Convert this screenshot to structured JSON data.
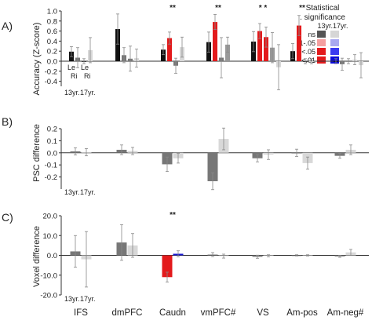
{
  "figure": {
    "region_labels": [
      "IFS",
      "dmPFC",
      "Caudn",
      "vmPFC#",
      "VS",
      "Am-pos",
      "Am-neg#"
    ],
    "age_note": [
      "13yr.",
      "17yr."
    ],
    "lr_note": [
      "Le",
      "Ri"
    ]
  },
  "legend": {
    "title": "Statistical significance",
    "title_line1": "Statistical",
    "title_line2": ". significance",
    "age_header": "13yr.17yr.",
    "rows": [
      {
        "label": "ns",
        "c13": "#555555",
        "c17": "#d6d6d6"
      },
      {
        "label": ".1-.05",
        "c13": "#f4a0a0",
        "c17": "#a8a8f0"
      },
      {
        "label": "<.05",
        "c13": "#e31a1c",
        "c17": "#3a3af0"
      },
      {
        "label": "<.01",
        "c13": "#e31a1c",
        "c17": "#0a0ad8"
      }
    ]
  },
  "colors": {
    "ns13_dark": "#111111",
    "ns13_mid": "#777777",
    "ns17_light": "#d8d8d8",
    "sig13": "#e31a1c",
    "sig17": "#1515d0"
  },
  "chart_data": [
    {
      "type": "bar",
      "panel": "A)",
      "ylabel": "Accuracy (Z-score)",
      "ylim": [
        -0.5,
        1.0
      ],
      "yticks": [
        "1.0",
        "0.8",
        "0.6",
        "0.4",
        "0.2",
        "0.0",
        "-0.2",
        "-0.4"
      ],
      "categories": [
        "IFS",
        "dmPFC",
        "Caudn",
        "vmPFC#",
        "VS",
        "Am-pos",
        "Am-neg#"
      ],
      "series": [
        {
          "values": [
            0.19,
            0.64,
            0.23,
            0.38,
            0.39,
            0.2,
            0.0
          ],
          "err": [
            0.1,
            0.3,
            0.1,
            0.2,
            0.2,
            0.15,
            0.05
          ],
          "colors": [
            "#111111",
            "#111111",
            "#111111",
            "#111111",
            "#111111",
            "#111111",
            "#111111"
          ]
        },
        {
          "values": [
            0.07,
            0.12,
            0.46,
            0.78,
            0.6,
            0.71,
            -0.06
          ],
          "err": [
            0.2,
            0.15,
            0.12,
            0.15,
            0.15,
            0.2,
            0.12
          ],
          "colors": [
            "#777777",
            "#777777",
            "#e31a1c",
            "#e31a1c",
            "#e31a1c",
            "#e31a1c",
            "#777777"
          ]
        },
        {
          "values": [
            0.0,
            0.05,
            -0.09,
            0.07,
            0.48,
            0.0,
            0.0
          ],
          "err": [
            0.05,
            0.25,
            0.15,
            0.4,
            0.2,
            0.05,
            0.05
          ],
          "colors": [
            "#111111",
            "#777777",
            "#777777",
            "#777777",
            "#e31a1c",
            "#111111",
            "#777777"
          ]
        },
        {
          "values": [
            0.22,
            0.06,
            0.28,
            0.33,
            0.27,
            0.0,
            0.03
          ],
          "err": [
            0.25,
            0.18,
            0.2,
            0.15,
            0.3,
            0.05,
            0.1
          ],
          "colors": [
            "#d8d8d8",
            "#d8d8d8",
            "#d8d8d8",
            "#999999",
            "#999999",
            "#d8d8d8",
            "#d8d8d8"
          ]
        }
      ],
      "extra_bars": [
        {
          "category": "VS",
          "value": -0.12,
          "err": 0.45,
          "color": "#d8d8d8"
        },
        {
          "category": "Am-neg#",
          "value": -0.08,
          "err": 0.25,
          "color": "#d8d8d8"
        }
      ],
      "annotations": [
        {
          "category": "Caudn",
          "text": "**"
        },
        {
          "category": "vmPFC#",
          "text": "**"
        },
        {
          "category": "VS",
          "text": "* *"
        },
        {
          "category": "Am-pos",
          "text": "**"
        }
      ]
    },
    {
      "type": "bar",
      "panel": "B)",
      "ylabel": "PSC difference",
      "ylim": [
        -0.3,
        0.2
      ],
      "yticks": [
        "0.2",
        "0.1",
        "0.0",
        "-0.1",
        "-0.2"
      ],
      "categories": [
        "IFS",
        "dmPFC",
        "Caudn",
        "vmPFC#",
        "VS",
        "Am-pos",
        "Am-neg#"
      ],
      "series": [
        {
          "name": "13yr.",
          "values": [
            0.012,
            0.025,
            -0.095,
            -0.235,
            -0.045,
            0.0,
            -0.025
          ],
          "err": [
            0.03,
            0.04,
            0.06,
            0.07,
            0.03,
            0.03,
            0.02
          ],
          "colors": [
            "#777777",
            "#777777",
            "#777777",
            "#777777",
            "#777777",
            "#777777",
            "#777777"
          ]
        },
        {
          "name": "17yr.",
          "values": [
            0.005,
            0.015,
            -0.045,
            0.115,
            -0.015,
            -0.085,
            0.025
          ],
          "err": [
            0.03,
            0.03,
            0.04,
            0.09,
            0.04,
            0.05,
            0.04
          ],
          "colors": [
            "#d8d8d8",
            "#d8d8d8",
            "#d8d8d8",
            "#d8d8d8",
            "#d8d8d8",
            "#d8d8d8",
            "#d8d8d8"
          ]
        }
      ]
    },
    {
      "type": "bar",
      "panel": "C)",
      "ylabel": "Voxel difference",
      "ylim": [
        -20,
        20
      ],
      "yticks": [
        "20.0",
        "10.0",
        "0.0",
        "-10.0",
        "-20.0"
      ],
      "categories": [
        "IFS",
        "dmPFC",
        "Caudn",
        "vmPFC#",
        "VS",
        "Am-pos",
        "Am-neg#"
      ],
      "series": [
        {
          "name": "13yr.",
          "values": [
            2.0,
            6.5,
            -11.0,
            0.4,
            -0.7,
            0.0,
            -0.5
          ],
          "err": [
            8.0,
            9.0,
            2.5,
            1.0,
            0.8,
            0.3,
            0.5
          ],
          "colors": [
            "#777777",
            "#777777",
            "#e31a1c",
            "#777777",
            "#777777",
            "#777777",
            "#777777"
          ]
        },
        {
          "name": "17yr.",
          "values": [
            -2.0,
            5.0,
            0.8,
            -0.4,
            -0.2,
            0.0,
            1.5
          ],
          "err": [
            14.0,
            6.0,
            1.5,
            1.0,
            0.5,
            0.3,
            1.5
          ],
          "colors": [
            "#d8d8d8",
            "#d8d8d8",
            "#1515d0",
            "#d8d8d8",
            "#d8d8d8",
            "#d8d8d8",
            "#d8d8d8"
          ]
        }
      ],
      "annotations": [
        {
          "category": "Caudn",
          "text": "**"
        }
      ]
    }
  ]
}
